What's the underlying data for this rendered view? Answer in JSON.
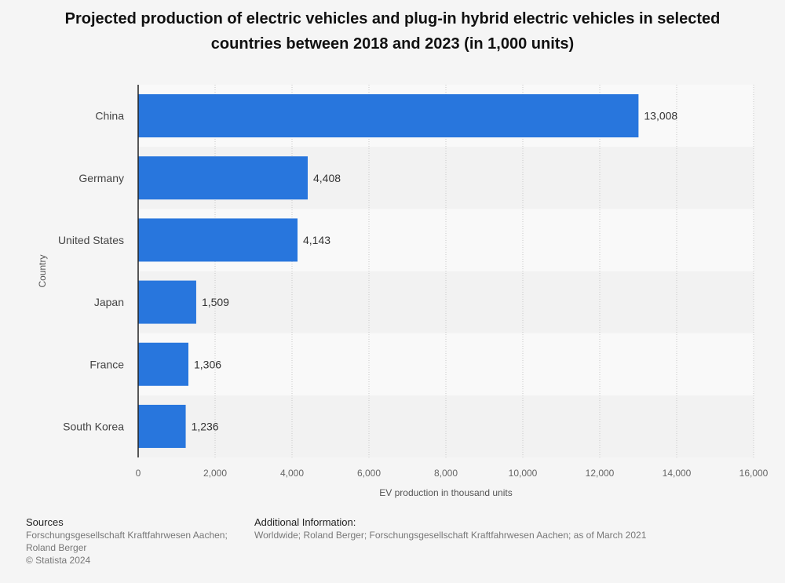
{
  "chart_data": {
    "type": "bar",
    "orientation": "horizontal",
    "title": "Projected production of electric vehicles and plug-in hybrid electric vehicles in selected countries between 2018 and 2023 (in 1,000 units)",
    "categories": [
      "China",
      "Germany",
      "United States",
      "Japan",
      "France",
      "South Korea"
    ],
    "values": [
      13008,
      4408,
      4143,
      1509,
      1306,
      1236
    ],
    "value_labels": [
      "13,008",
      "4,408",
      "4,143",
      "1,509",
      "1,306",
      "1,236"
    ],
    "xlabel": "EV production in thousand units",
    "ylabel": "Country",
    "xlim": [
      0,
      16000
    ],
    "xticks": [
      0,
      2000,
      4000,
      6000,
      8000,
      10000,
      12000,
      14000,
      16000
    ],
    "xtick_labels": [
      "0",
      "2,000",
      "4,000",
      "6,000",
      "8,000",
      "10,000",
      "12,000",
      "14,000",
      "16,000"
    ],
    "grid": "vertical dotted",
    "bar_color": "#2876dd"
  },
  "footer": {
    "sources_heading": "Sources",
    "sources_line1": "Forschungsgesellschaft Kraftfahrwesen Aachen;",
    "sources_line2": "Roland Berger",
    "copyright": "© Statista 2024",
    "additional_heading": "Additional Information:",
    "additional_text": "Worldwide; Roland Berger; Forschungsgesellschaft Kraftfahrwesen Aachen; as of March 2021"
  }
}
